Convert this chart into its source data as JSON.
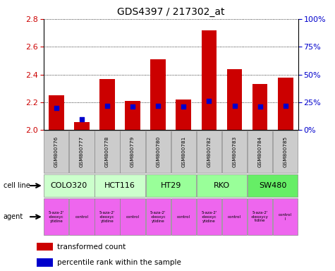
{
  "title": "GDS4397 / 217302_at",
  "samples": [
    "GSM800776",
    "GSM800777",
    "GSM800778",
    "GSM800779",
    "GSM800780",
    "GSM800781",
    "GSM800782",
    "GSM800783",
    "GSM800784",
    "GSM800785"
  ],
  "transformed_count": [
    2.25,
    2.06,
    2.37,
    2.21,
    2.51,
    2.22,
    2.72,
    2.44,
    2.33,
    2.38
  ],
  "percentile_rank": [
    20,
    10,
    22,
    21,
    22,
    21,
    26,
    22,
    21,
    22
  ],
  "bar_base": 2.0,
  "ylim": [
    2.0,
    2.8
  ],
  "y2lim": [
    0,
    100
  ],
  "y2ticks": [
    0,
    25,
    50,
    75,
    100
  ],
  "y2ticklabels": [
    "0%",
    "25%",
    "50%",
    "75%",
    "100%"
  ],
  "yticks": [
    2.0,
    2.2,
    2.4,
    2.6,
    2.8
  ],
  "cell_lines": [
    {
      "name": "COLO320",
      "start": 0,
      "end": 2,
      "color": "#ccffcc"
    },
    {
      "name": "HCT116",
      "start": 2,
      "end": 4,
      "color": "#ccffcc"
    },
    {
      "name": "HT29",
      "start": 4,
      "end": 6,
      "color": "#99ff99"
    },
    {
      "name": "RKO",
      "start": 6,
      "end": 8,
      "color": "#99ff99"
    },
    {
      "name": "SW480",
      "start": 8,
      "end": 10,
      "color": "#66ee66"
    }
  ],
  "agents": [
    {
      "name": "5-aza-2'\n-deoxyc\nytidine",
      "start": 0,
      "end": 1,
      "color": "#ee66ee"
    },
    {
      "name": "control",
      "start": 1,
      "end": 2,
      "color": "#ee66ee"
    },
    {
      "name": "5-aza-2'\n-deoxyc\nytidine",
      "start": 2,
      "end": 3,
      "color": "#ee66ee"
    },
    {
      "name": "control",
      "start": 3,
      "end": 4,
      "color": "#ee66ee"
    },
    {
      "name": "5-aza-2'\n-deoxyc\nytidine",
      "start": 4,
      "end": 5,
      "color": "#ee66ee"
    },
    {
      "name": "control",
      "start": 5,
      "end": 6,
      "color": "#ee66ee"
    },
    {
      "name": "5-aza-2'\n-deoxyc\nytidine",
      "start": 6,
      "end": 7,
      "color": "#ee66ee"
    },
    {
      "name": "control",
      "start": 7,
      "end": 8,
      "color": "#ee66ee"
    },
    {
      "name": "5-aza-2'\n-deoxycy\ntidine",
      "start": 8,
      "end": 9,
      "color": "#ee66ee"
    },
    {
      "name": "control\nl",
      "start": 9,
      "end": 10,
      "color": "#ee66ee"
    }
  ],
  "bar_color": "#cc0000",
  "dot_color": "#0000cc",
  "bar_width": 0.6,
  "ylabel_color": "#cc0000",
  "y2label_color": "#0000cc",
  "sample_bg_color": "#cccccc",
  "legend_items": [
    {
      "label": "transformed count",
      "color": "#cc0000"
    },
    {
      "label": "percentile rank within the sample",
      "color": "#0000cc"
    }
  ],
  "figsize": [
    4.75,
    3.84
  ],
  "dpi": 100
}
